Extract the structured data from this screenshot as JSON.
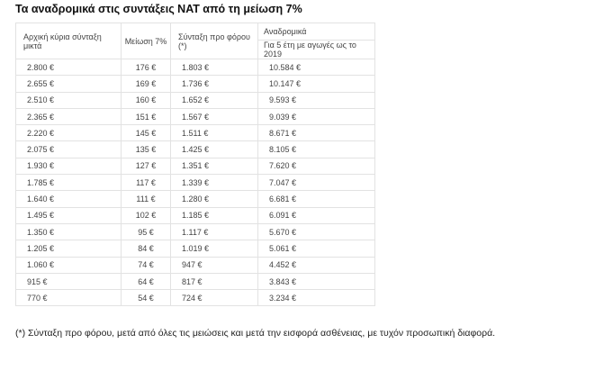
{
  "title": "Τα αναδρομικά στις συντάξεις ΝΑΤ από τη μείωση 7%",
  "table": {
    "headers": {
      "col1": "Αρχική κύρια σύνταξη μικτά",
      "col2": "Μείωση 7%",
      "col3": "Σύνταξη προ φόρου (*)",
      "col4": "Αναδρομικά",
      "col4_sub": "Για 5 έτη με αγωγές ως το 2019"
    },
    "rows": [
      [
        "2.800 €",
        "176 €",
        "1.803 €",
        "10.584 €"
      ],
      [
        "2.655 €",
        "169 €",
        "1.736 €",
        "10.147 €"
      ],
      [
        "2.510 €",
        "160 €",
        "1.652 €",
        "9.593 €"
      ],
      [
        "2.365 €",
        "151 €",
        "1.567 €",
        "9.039 €"
      ],
      [
        "2.220 €",
        "145 €",
        "1.511 €",
        "8.671 €"
      ],
      [
        "2.075 €",
        "135 €",
        "1.425 €",
        "8.105 €"
      ],
      [
        "1.930 €",
        "127 €",
        "1.351 €",
        "7.620 €"
      ],
      [
        "1.785 €",
        "117 €",
        "1.339 €",
        "7.047 €"
      ],
      [
        "1.640 €",
        "111 €",
        "1.280 €",
        "6.681 €"
      ],
      [
        "1.495 €",
        "102 €",
        "1.185 €",
        "6.091 €"
      ],
      [
        "1.350 €",
        "95 €",
        "1.117 €",
        "5.670 €"
      ],
      [
        "1.205 €",
        "84 €",
        "1.019 €",
        "5.061 €"
      ],
      [
        "1.060 €",
        "74 €",
        "947 €",
        "4.452 €"
      ],
      [
        "915 €",
        "64 €",
        "817 €",
        "3.843 €"
      ],
      [
        "770 €",
        "54 €",
        "724 €",
        "3.234 €"
      ]
    ]
  },
  "footnote": "(*) Σύνταξη προ φόρου, μετά από όλες τις μειώσεις και μετά την εισφορά ασθένειας, με τυχόν προσωπική διαφορά."
}
